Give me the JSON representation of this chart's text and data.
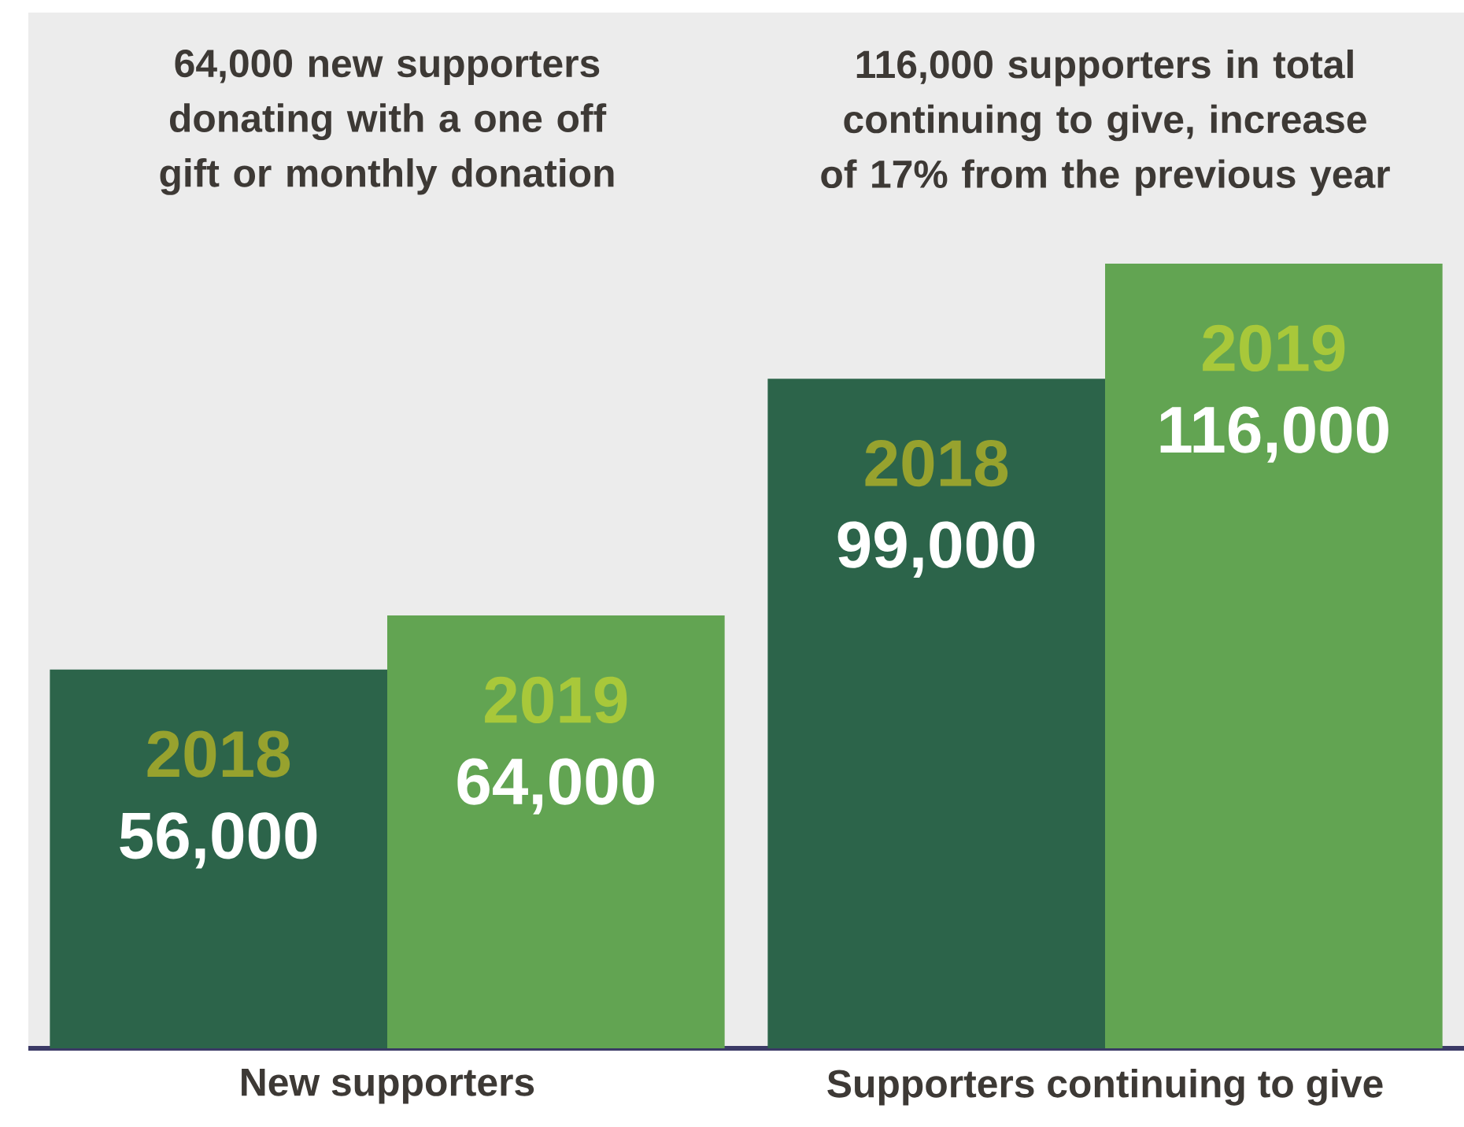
{
  "chart_data": {
    "type": "bar",
    "categories": [
      "New supporters",
      "Supporters continuing to give"
    ],
    "series": [
      {
        "name": "2018",
        "color": "#2c644a",
        "values": [
          56000,
          99000
        ],
        "value_labels": [
          "56,000",
          "99,000"
        ]
      },
      {
        "name": "2019",
        "color": "#62a452",
        "values": [
          64000,
          116000
        ],
        "value_labels": [
          "64,000",
          "116,000"
        ]
      }
    ],
    "annotations": [
      "64,000 new supporters donating with a one off gift or monthly donation",
      "116,000 supporters in total continuing to give, increase of 17% from the previous year"
    ]
  }
}
